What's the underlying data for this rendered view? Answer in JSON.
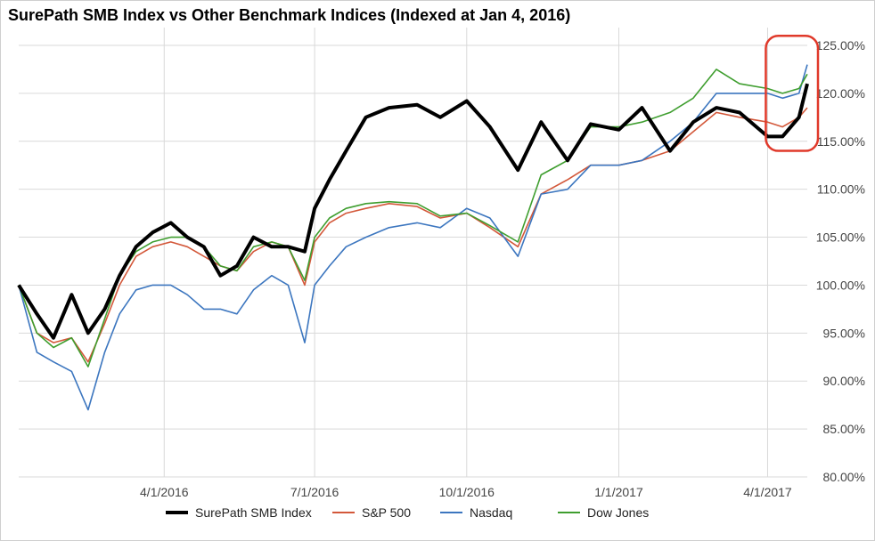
{
  "chart_data": {
    "type": "line",
    "title": "SurePath SMB Index vs Other Benchmark Indices (Indexed at Jan 4, 2016)",
    "xlabel": "",
    "ylabel": "",
    "x_ticks": [
      "4/1/2016",
      "7/1/2016",
      "10/1/2016",
      "1/1/2017",
      "4/1/2017"
    ],
    "y_ticks": [
      "80.00%",
      "85.00%",
      "90.00%",
      "95.00%",
      "100.00%",
      "105.00%",
      "110.00%",
      "115.00%",
      "120.00%",
      "125.00%"
    ],
    "ylim": [
      80,
      125
    ],
    "xlim": [
      "2016-01-04",
      "2017-04-25"
    ],
    "grid": true,
    "legend_position": "bottom",
    "highlight": {
      "shape": "rounded-rectangle",
      "color": "#e0392a",
      "x_range": [
        "2017-04-01",
        "2017-04-25"
      ],
      "y_range": [
        114,
        126
      ]
    },
    "series": [
      {
        "name": "SurePath SMB Index",
        "color": "#000000",
        "x": [
          "2016-01-04",
          "2016-01-15",
          "2016-01-25",
          "2016-02-05",
          "2016-02-15",
          "2016-02-25",
          "2016-03-05",
          "2016-03-15",
          "2016-03-25",
          "2016-04-05",
          "2016-04-15",
          "2016-04-25",
          "2016-05-05",
          "2016-05-15",
          "2016-05-25",
          "2016-06-05",
          "2016-06-15",
          "2016-06-25",
          "2016-07-01",
          "2016-07-10",
          "2016-07-20",
          "2016-08-01",
          "2016-08-15",
          "2016-09-01",
          "2016-09-15",
          "2016-10-01",
          "2016-10-15",
          "2016-11-01",
          "2016-11-15",
          "2016-12-01",
          "2016-12-15",
          "2017-01-01",
          "2017-01-15",
          "2017-02-01",
          "2017-02-15",
          "2017-03-01",
          "2017-03-15",
          "2017-04-01",
          "2017-04-10",
          "2017-04-20",
          "2017-04-25"
        ],
        "y": [
          100,
          97,
          94.5,
          99,
          95,
          97.5,
          101,
          104,
          105.5,
          106.5,
          105,
          104,
          101,
          102,
          105,
          104,
          104,
          103.5,
          108,
          111,
          114,
          117.5,
          118.5,
          118.8,
          117.5,
          119.2,
          116.5,
          112,
          117,
          113,
          116.8,
          116.2,
          118.5,
          114,
          117,
          118.5,
          118,
          115.5,
          115.5,
          117.5,
          121
        ]
      },
      {
        "name": "S&P 500",
        "color": "#d3583a",
        "x": [
          "2016-01-04",
          "2016-01-15",
          "2016-01-25",
          "2016-02-05",
          "2016-02-15",
          "2016-02-25",
          "2016-03-05",
          "2016-03-15",
          "2016-03-25",
          "2016-04-05",
          "2016-04-15",
          "2016-04-25",
          "2016-05-05",
          "2016-05-15",
          "2016-05-25",
          "2016-06-05",
          "2016-06-15",
          "2016-06-25",
          "2016-07-01",
          "2016-07-10",
          "2016-07-20",
          "2016-08-01",
          "2016-08-15",
          "2016-09-01",
          "2016-09-15",
          "2016-10-01",
          "2016-10-15",
          "2016-11-01",
          "2016-11-15",
          "2016-12-01",
          "2016-12-15",
          "2017-01-01",
          "2017-01-15",
          "2017-02-01",
          "2017-02-15",
          "2017-03-01",
          "2017-03-15",
          "2017-04-01",
          "2017-04-10",
          "2017-04-20",
          "2017-04-25"
        ],
        "y": [
          100,
          95,
          94,
          94.5,
          92,
          96,
          100,
          103,
          104,
          104.5,
          104,
          103,
          102,
          101.5,
          103.5,
          104.5,
          104,
          100,
          104.5,
          106.5,
          107.5,
          108,
          108.5,
          108.2,
          107,
          107.5,
          106,
          104,
          109.5,
          111,
          112.5,
          112.5,
          113,
          114,
          116,
          118,
          117.5,
          117,
          116.5,
          117.5,
          118.5
        ]
      },
      {
        "name": "Nasdaq",
        "color": "#3c76bf",
        "x": [
          "2016-01-04",
          "2016-01-15",
          "2016-01-25",
          "2016-02-05",
          "2016-02-15",
          "2016-02-25",
          "2016-03-05",
          "2016-03-15",
          "2016-03-25",
          "2016-04-05",
          "2016-04-15",
          "2016-04-25",
          "2016-05-05",
          "2016-05-15",
          "2016-05-25",
          "2016-06-05",
          "2016-06-15",
          "2016-06-25",
          "2016-07-01",
          "2016-07-10",
          "2016-07-20",
          "2016-08-01",
          "2016-08-15",
          "2016-09-01",
          "2016-09-15",
          "2016-10-01",
          "2016-10-15",
          "2016-11-01",
          "2016-11-15",
          "2016-12-01",
          "2016-12-15",
          "2017-01-01",
          "2017-01-15",
          "2017-02-01",
          "2017-02-15",
          "2017-03-01",
          "2017-03-15",
          "2017-04-01",
          "2017-04-10",
          "2017-04-20",
          "2017-04-25"
        ],
        "y": [
          100,
          93,
          92,
          91,
          87,
          93,
          97,
          99.5,
          100,
          100,
          99,
          97.5,
          97.5,
          97,
          99.5,
          101,
          100,
          94,
          100,
          102,
          104,
          105,
          106,
          106.5,
          106,
          108,
          107,
          103,
          109.5,
          110,
          112.5,
          112.5,
          113,
          115,
          117,
          120,
          120,
          120,
          119.5,
          120,
          123
        ]
      },
      {
        "name": "Dow Jones",
        "color": "#3f9e2f",
        "x": [
          "2016-01-04",
          "2016-01-15",
          "2016-01-25",
          "2016-02-05",
          "2016-02-15",
          "2016-02-25",
          "2016-03-05",
          "2016-03-15",
          "2016-03-25",
          "2016-04-05",
          "2016-04-15",
          "2016-04-25",
          "2016-05-05",
          "2016-05-15",
          "2016-05-25",
          "2016-06-05",
          "2016-06-15",
          "2016-06-25",
          "2016-07-01",
          "2016-07-10",
          "2016-07-20",
          "2016-08-01",
          "2016-08-15",
          "2016-09-01",
          "2016-09-15",
          "2016-10-01",
          "2016-10-15",
          "2016-11-01",
          "2016-11-15",
          "2016-12-01",
          "2016-12-15",
          "2017-01-01",
          "2017-01-15",
          "2017-02-01",
          "2017-02-15",
          "2017-03-01",
          "2017-03-15",
          "2017-04-01",
          "2017-04-10",
          "2017-04-20",
          "2017-04-25"
        ],
        "y": [
          100,
          95,
          93.5,
          94.5,
          91.5,
          96.5,
          101,
          103.5,
          104.5,
          105,
          105,
          104,
          102,
          101.5,
          104,
          104.5,
          104,
          100.5,
          105,
          107,
          108,
          108.5,
          108.7,
          108.5,
          107.2,
          107.5,
          106.2,
          104.5,
          111.5,
          113,
          116.5,
          116.5,
          117,
          118,
          119.5,
          122.5,
          121,
          120.5,
          120,
          120.5,
          122
        ]
      }
    ]
  }
}
